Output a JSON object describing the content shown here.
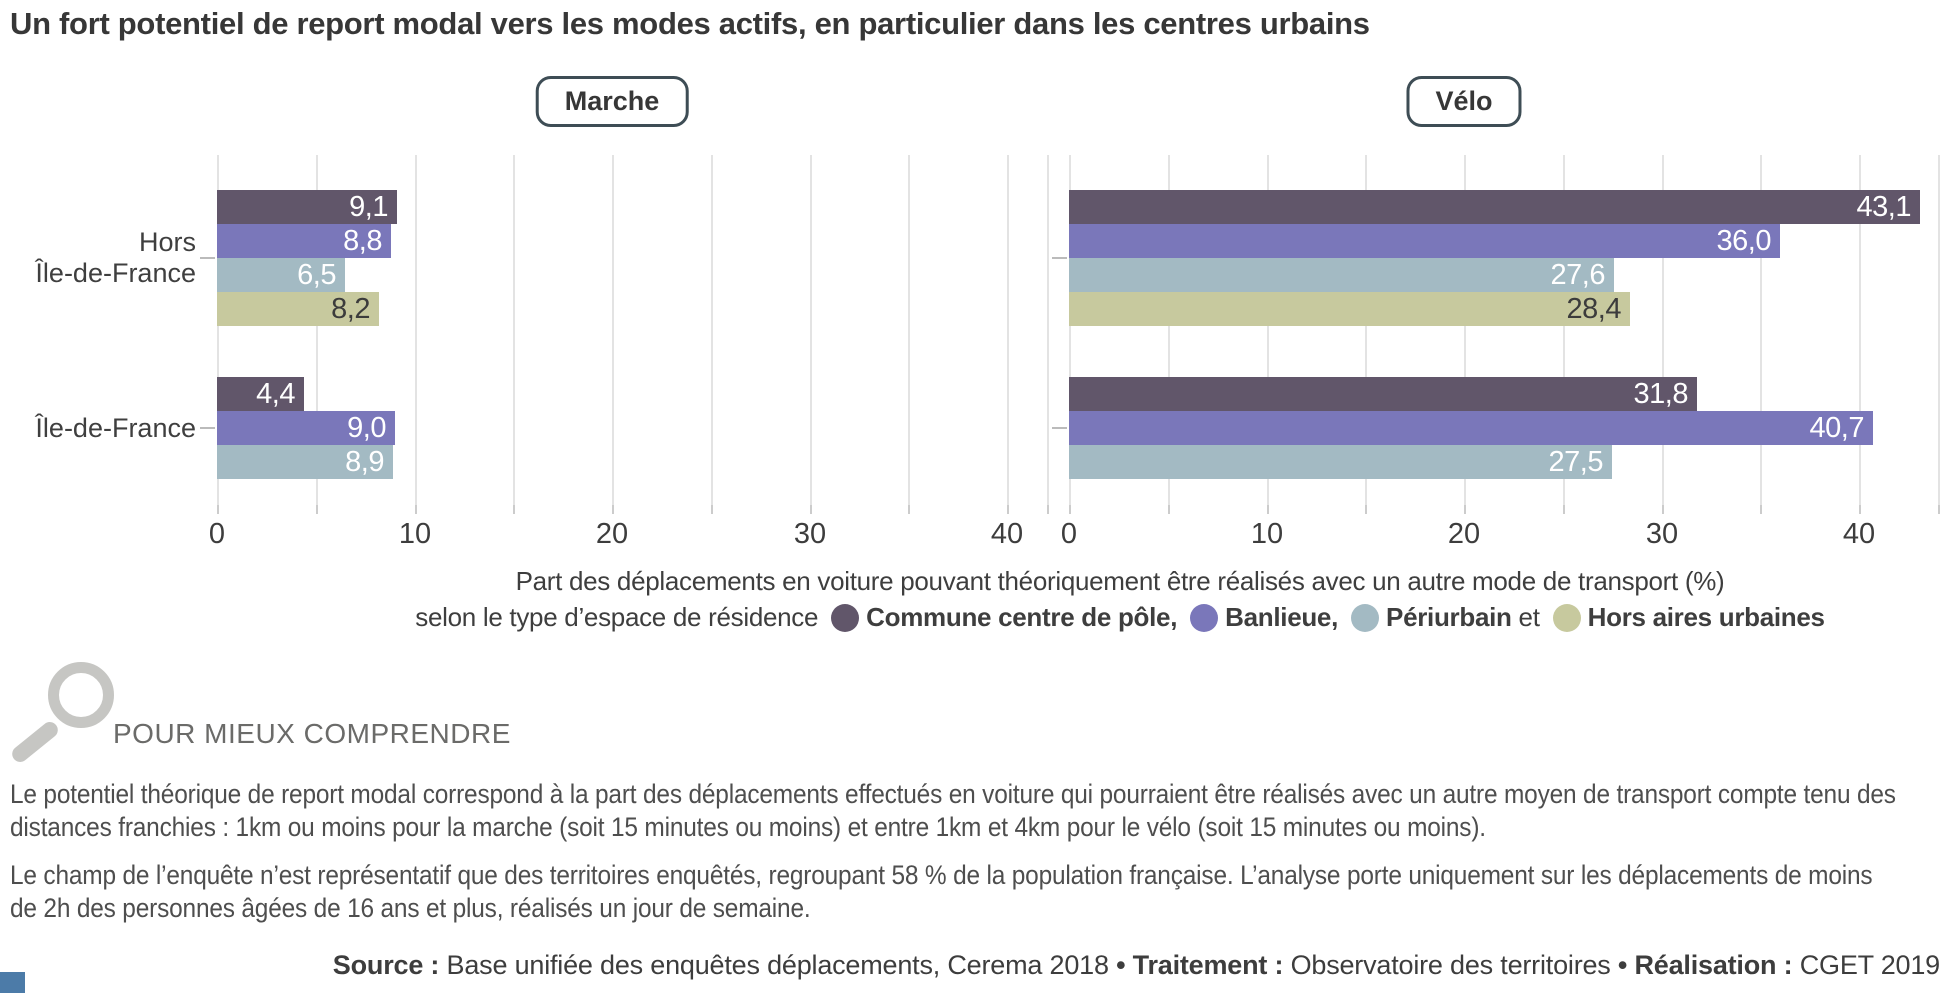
{
  "title": "Un fort potentiel de report modal vers les modes actifs, en particulier dans les centres urbains",
  "chart_data": {
    "type": "bar",
    "orientation": "horizontal",
    "grid": true,
    "categories": [
      "Hors Île-de-France",
      "Île-de-France"
    ],
    "category_label_lines": [
      [
        "Hors",
        "Île-de-France"
      ],
      [
        "Île-de-France"
      ]
    ],
    "series_names": [
      "Commune centre de pôle",
      "Banlieue",
      "Périurbain",
      "Hors aires urbaines"
    ],
    "series_colors": [
      "#61566a",
      "#7a77ba",
      "#a3bac3",
      "#c7c99e"
    ],
    "value_label_color_on_dark": "#ffffff",
    "value_label_color_on_light": "#3c3c3c",
    "gridline_step": 5,
    "panels": [
      {
        "title": "Marche",
        "xlim": [
          0,
          42
        ],
        "ticks_labeled": [
          0,
          10,
          20,
          30,
          40
        ],
        "groups": [
          {
            "category": "Hors Île-de-France",
            "values": [
              9.1,
              8.8,
              6.5,
              8.2
            ],
            "display": [
              "9,1",
              "8,8",
              "6,5",
              "8,2"
            ]
          },
          {
            "category": "Île-de-France",
            "values": [
              4.4,
              9.0,
              8.9
            ],
            "display": [
              "4,4",
              "9,0",
              "8,9"
            ]
          }
        ]
      },
      {
        "title": "Vélo",
        "xlim": [
          0,
          44
        ],
        "ticks_labeled": [
          0,
          10,
          20,
          30,
          40
        ],
        "groups": [
          {
            "category": "Hors Île-de-France",
            "values": [
              43.1,
              36.0,
              27.6,
              28.4
            ],
            "display": [
              "43,1",
              "36,0",
              "27,6",
              "28,4"
            ]
          },
          {
            "category": "Île-de-France",
            "values": [
              31.8,
              40.7,
              27.5
            ],
            "display": [
              "31,8",
              "40,7",
              "27,5"
            ]
          }
        ]
      }
    ],
    "legend": {
      "line1": "Part des déplacements en voiture pouvant théoriquement être réalisés avec un autre mode de transport (%)",
      "line2_prefix": "selon le type d’espace de résidence",
      "items": [
        {
          "label": "Commune centre de pôle,",
          "suffix": "",
          "color": "#61566a"
        },
        {
          "label": "Banlieue,",
          "suffix": "",
          "color": "#7a77ba"
        },
        {
          "label": "Périurbain",
          "suffix": " et",
          "color": "#a3bac3"
        },
        {
          "label": "Hors aires urbaines",
          "suffix": "",
          "color": "#c7c99e"
        }
      ]
    }
  },
  "info": {
    "heading": "POUR MIEUX COMPRENDRE",
    "paragraphs": [
      "Le potentiel théorique de report modal correspond à la part des déplacements effectués en voiture qui pourraient être réalisés avec un autre moyen de transport compte tenu des distances franchies : 1km ou moins pour la marche (soit 15 minutes ou moins) et entre 1km et 4km pour le vélo (soit 15 minutes ou moins).",
      "Le champ de l’enquête n’est représentatif que des territoires enquêtés, regroupant 58 % de la population française. L’analyse porte uniquement sur les déplacements de moins de 2h des personnes âgées de 16 ans et plus, réalisés un jour de semaine."
    ]
  },
  "source": {
    "segments": [
      {
        "text": "Source : ",
        "bold": true
      },
      {
        "text": "Base unifiée des enquêtes déplacements, Cerema 2018 ",
        "bold": false
      },
      {
        "text": "• ",
        "bold": true
      },
      {
        "text": "Traitement : ",
        "bold": true
      },
      {
        "text": "Observatoire des territoires ",
        "bold": false
      },
      {
        "text": "• ",
        "bold": true
      },
      {
        "text": "Réalisation : ",
        "bold": true
      },
      {
        "text": "CGET 2019",
        "bold": false
      }
    ]
  }
}
